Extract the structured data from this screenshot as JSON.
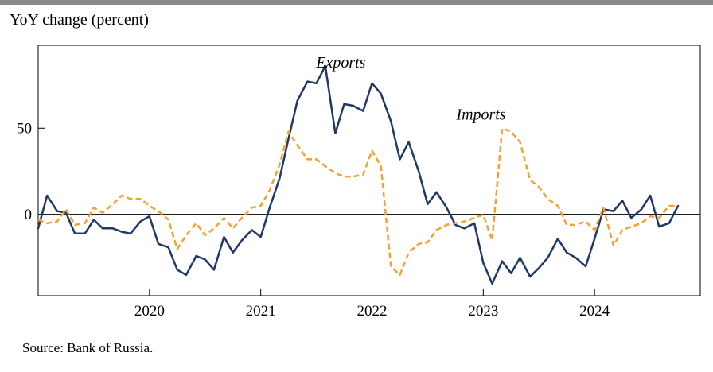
{
  "header": {
    "ylabel": "YoY change (percent)"
  },
  "footer": {
    "source": "Source: Bank of Russia."
  },
  "colors": {
    "exports": "#1f3868",
    "imports": "#f5a132",
    "axis": "#000000",
    "top_rule": "#8a8a8a"
  },
  "chart_data": {
    "type": "line",
    "title": "",
    "ylabel": "YoY change (percent)",
    "xlabel": "",
    "x_ticks": [
      {
        "label": "2020",
        "t": 2020.0
      },
      {
        "label": "2021",
        "t": 2021.0
      },
      {
        "label": "2022",
        "t": 2022.0
      },
      {
        "label": "2023",
        "t": 2023.0
      },
      {
        "label": "2024",
        "t": 2024.0
      }
    ],
    "y_ticks": [
      0,
      50
    ],
    "xlim": [
      2019.0,
      2024.95
    ],
    "ylim": [
      -47,
      98
    ],
    "zero_line": true,
    "grid": false,
    "legend": "inline labels",
    "series": [
      {
        "name": "Exports",
        "color": "#1f3868",
        "style": "solid",
        "label_at": [
          2021.72,
          85
        ],
        "points": [
          [
            2019.0,
            -8
          ],
          [
            2019.08,
            11
          ],
          [
            2019.17,
            2
          ],
          [
            2019.25,
            1
          ],
          [
            2019.33,
            -11
          ],
          [
            2019.42,
            -11
          ],
          [
            2019.5,
            -3
          ],
          [
            2019.58,
            -8
          ],
          [
            2019.67,
            -8
          ],
          [
            2019.75,
            -10
          ],
          [
            2019.83,
            -11
          ],
          [
            2019.92,
            -4
          ],
          [
            2020.0,
            -1
          ],
          [
            2020.08,
            -17
          ],
          [
            2020.17,
            -19
          ],
          [
            2020.25,
            -32
          ],
          [
            2020.33,
            -35
          ],
          [
            2020.42,
            -24
          ],
          [
            2020.5,
            -26
          ],
          [
            2020.58,
            -32
          ],
          [
            2020.67,
            -13
          ],
          [
            2020.75,
            -22
          ],
          [
            2020.83,
            -15
          ],
          [
            2020.92,
            -9
          ],
          [
            2021.0,
            -13
          ],
          [
            2021.08,
            4
          ],
          [
            2021.17,
            21
          ],
          [
            2021.25,
            44
          ],
          [
            2021.33,
            66
          ],
          [
            2021.42,
            77
          ],
          [
            2021.5,
            76
          ],
          [
            2021.58,
            86
          ],
          [
            2021.67,
            47
          ],
          [
            2021.75,
            64
          ],
          [
            2021.83,
            63
          ],
          [
            2021.92,
            60
          ],
          [
            2022.0,
            76
          ],
          [
            2022.08,
            70
          ],
          [
            2022.17,
            54
          ],
          [
            2022.25,
            32
          ],
          [
            2022.33,
            42
          ],
          [
            2022.42,
            25
          ],
          [
            2022.5,
            6
          ],
          [
            2022.58,
            13
          ],
          [
            2022.67,
            4
          ],
          [
            2022.75,
            -6
          ],
          [
            2022.83,
            -8
          ],
          [
            2022.92,
            -5
          ],
          [
            2023.0,
            -28
          ],
          [
            2023.08,
            -40
          ],
          [
            2023.17,
            -27
          ],
          [
            2023.25,
            -34
          ],
          [
            2023.33,
            -25
          ],
          [
            2023.42,
            -36
          ],
          [
            2023.5,
            -31
          ],
          [
            2023.58,
            -25
          ],
          [
            2023.67,
            -14
          ],
          [
            2023.75,
            -22
          ],
          [
            2023.83,
            -25
          ],
          [
            2023.92,
            -30
          ],
          [
            2024.0,
            -14
          ],
          [
            2024.08,
            3
          ],
          [
            2024.17,
            2
          ],
          [
            2024.25,
            8
          ],
          [
            2024.33,
            -2
          ],
          [
            2024.42,
            3
          ],
          [
            2024.5,
            11
          ],
          [
            2024.58,
            -7
          ],
          [
            2024.67,
            -5
          ],
          [
            2024.75,
            5
          ]
        ]
      },
      {
        "name": "Imports",
        "color": "#f5a132",
        "style": "dashed",
        "label_at": [
          2022.98,
          55
        ],
        "points": [
          [
            2019.0,
            -3
          ],
          [
            2019.08,
            -5
          ],
          [
            2019.17,
            -4
          ],
          [
            2019.25,
            3
          ],
          [
            2019.33,
            -6
          ],
          [
            2019.42,
            -5
          ],
          [
            2019.5,
            4
          ],
          [
            2019.58,
            1
          ],
          [
            2019.67,
            6
          ],
          [
            2019.75,
            11
          ],
          [
            2019.83,
            9
          ],
          [
            2019.92,
            9
          ],
          [
            2020.0,
            5
          ],
          [
            2020.08,
            2
          ],
          [
            2020.17,
            -3
          ],
          [
            2020.25,
            -20
          ],
          [
            2020.33,
            -12
          ],
          [
            2020.42,
            -5
          ],
          [
            2020.5,
            -12
          ],
          [
            2020.58,
            -8
          ],
          [
            2020.67,
            -2
          ],
          [
            2020.75,
            -8
          ],
          [
            2020.83,
            -2
          ],
          [
            2020.92,
            4
          ],
          [
            2021.0,
            5
          ],
          [
            2021.08,
            14
          ],
          [
            2021.17,
            29
          ],
          [
            2021.25,
            48
          ],
          [
            2021.33,
            40
          ],
          [
            2021.42,
            32
          ],
          [
            2021.5,
            32
          ],
          [
            2021.58,
            28
          ],
          [
            2021.67,
            24
          ],
          [
            2021.75,
            22
          ],
          [
            2021.83,
            22
          ],
          [
            2021.92,
            23
          ],
          [
            2022.0,
            37
          ],
          [
            2022.08,
            28
          ],
          [
            2022.17,
            -30
          ],
          [
            2022.25,
            -35
          ],
          [
            2022.33,
            -22
          ],
          [
            2022.42,
            -17
          ],
          [
            2022.5,
            -16
          ],
          [
            2022.58,
            -9
          ],
          [
            2022.67,
            -6
          ],
          [
            2022.75,
            -5
          ],
          [
            2022.83,
            -4
          ],
          [
            2022.92,
            -2
          ],
          [
            2023.0,
            0
          ],
          [
            2023.08,
            -15
          ],
          [
            2023.17,
            50
          ],
          [
            2023.25,
            48
          ],
          [
            2023.33,
            42
          ],
          [
            2023.42,
            20
          ],
          [
            2023.5,
            16
          ],
          [
            2023.58,
            9
          ],
          [
            2023.67,
            5
          ],
          [
            2023.75,
            -6
          ],
          [
            2023.83,
            -6
          ],
          [
            2023.92,
            -4
          ],
          [
            2024.0,
            -9
          ],
          [
            2024.08,
            4
          ],
          [
            2024.17,
            -18
          ],
          [
            2024.25,
            -9
          ],
          [
            2024.33,
            -7
          ],
          [
            2024.42,
            -5
          ],
          [
            2024.5,
            -1
          ],
          [
            2024.58,
            -2
          ],
          [
            2024.67,
            5
          ],
          [
            2024.75,
            5
          ]
        ]
      }
    ]
  }
}
